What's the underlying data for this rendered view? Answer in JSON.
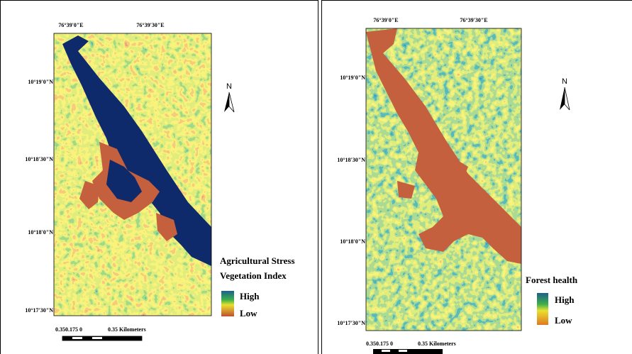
{
  "panels": [
    {
      "top_labels": [
        "76°39'0\"E",
        "76°39'30\"E"
      ],
      "left_labels": [
        "10°19'0\"N",
        "10°18'30\"N",
        "10°18'0\"N",
        "10°17'30\"N"
      ],
      "north": "N",
      "legend": {
        "title": [
          "Agricultural Stress",
          "Vegetation Index"
        ],
        "high": "High",
        "low": "Low"
      },
      "scale": [
        "0.350.175 0",
        "0.35 Kilometers"
      ]
    },
    {
      "top_labels": [
        "76°39'0\"E",
        "76°39'30\"E"
      ],
      "left_labels": [
        "10°19'0\"N",
        "10°18'30\"N",
        "10°18'0\"N",
        "10°17'30\"N"
      ],
      "north": "N",
      "legend": {
        "title": [
          "Forest health"
        ],
        "high": "High",
        "low": "Low"
      },
      "scale": [
        "0.350.175 0",
        "0.35 Kilometers"
      ]
    }
  ]
}
